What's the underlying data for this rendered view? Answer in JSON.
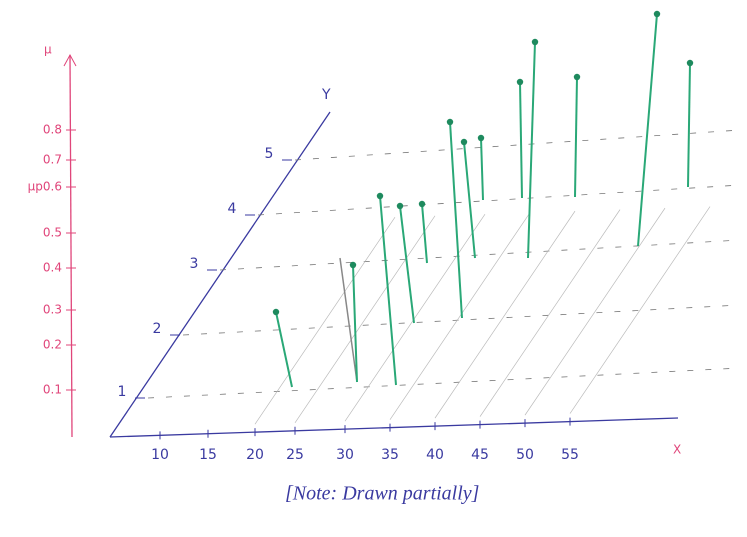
{
  "axes": {
    "mu_label": "μ",
    "y_label": "Y",
    "x_label": "X",
    "mu_ticks": [
      "0.1",
      "0.2",
      "0.3",
      "0.4",
      "0.5",
      "μp0.6",
      "0.7",
      "0.8"
    ],
    "y_ticks": [
      "1",
      "2",
      "3",
      "4",
      "5"
    ],
    "x_ticks": [
      "10",
      "15",
      "20",
      "25",
      "30",
      "35",
      "40",
      "45",
      "50",
      "55"
    ]
  },
  "note": "[Note: Drawn partially]"
}
